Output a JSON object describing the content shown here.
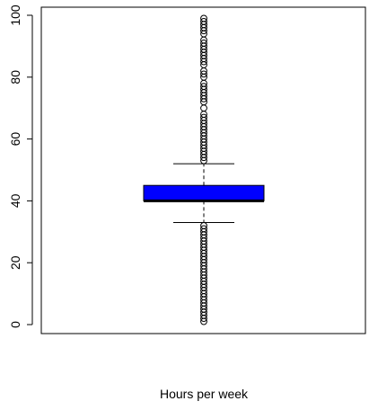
{
  "chart_data": {
    "type": "box",
    "title": "",
    "xlabel": "Hours per week",
    "ylabel": "",
    "ylim": [
      -3,
      102
    ],
    "y_ticks": [
      0,
      20,
      40,
      60,
      80,
      100
    ],
    "grid": false,
    "box": {
      "q1": 40,
      "median": 40,
      "q3": 45,
      "whisker_low": 33,
      "whisker_high": 52,
      "fill": "#0000ff"
    },
    "outliers": [
      1,
      2,
      3,
      4,
      5,
      6,
      7,
      8,
      9,
      10,
      11,
      12,
      13,
      14,
      15,
      16,
      17,
      18,
      19,
      20,
      21,
      22,
      23,
      24,
      25,
      26,
      27,
      28,
      29,
      30,
      31,
      32,
      53,
      54,
      55,
      56,
      57,
      58,
      59,
      60,
      61,
      62,
      63,
      64,
      65,
      66,
      67,
      68,
      70,
      72,
      73,
      74,
      75,
      76,
      77,
      78,
      80,
      81,
      82,
      84,
      85,
      86,
      87,
      88,
      89,
      90,
      91,
      92,
      94,
      95,
      96,
      97,
      98,
      99
    ]
  }
}
